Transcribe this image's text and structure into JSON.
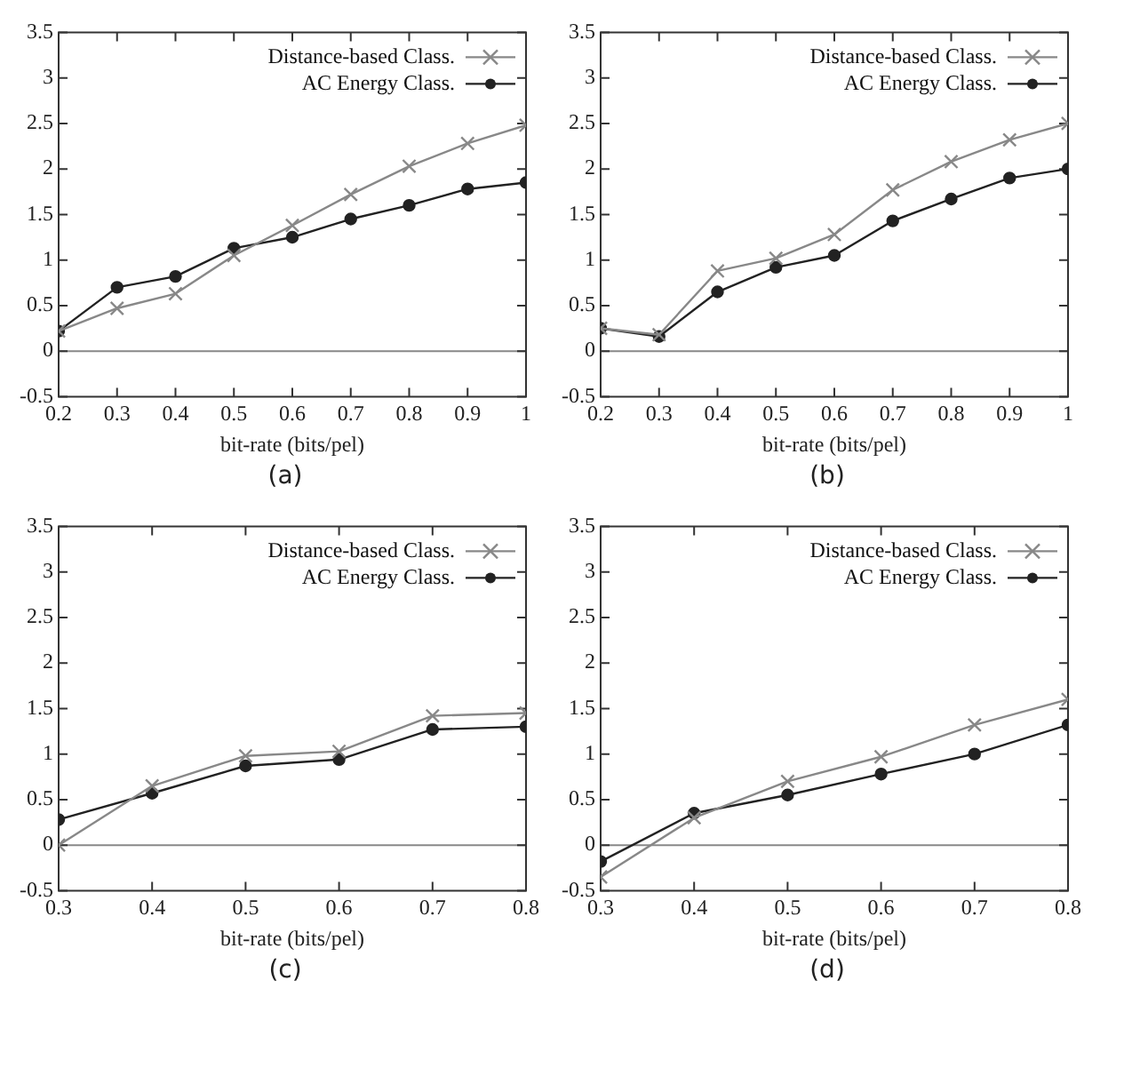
{
  "chart_data": [
    {
      "type": "line",
      "xlabel": "bit-rate (bits/pel)",
      "x": [
        0.2,
        0.3,
        0.4,
        0.5,
        0.6,
        0.7,
        0.8,
        0.9,
        1.0
      ],
      "xlim": [
        0.2,
        1.0
      ],
      "xticks": [
        0.2,
        0.3,
        0.4,
        0.5,
        0.6,
        0.7,
        0.8,
        0.9,
        1
      ],
      "ylim": [
        -0.5,
        3.5
      ],
      "yticks": [
        -0.5,
        0,
        0.5,
        1,
        1.5,
        2,
        2.5,
        3,
        3.5
      ],
      "legend": "top right",
      "annotations": [
        "(a)"
      ],
      "ref_lines": [
        {
          "axis": "y",
          "value": 0,
          "color": "#888888"
        }
      ],
      "series": [
        {
          "name": "Distance-based Class.",
          "color": "#888888",
          "marker": "cross",
          "values": [
            0.22,
            0.47,
            0.63,
            1.05,
            1.38,
            1.72,
            2.03,
            2.28,
            2.48
          ]
        },
        {
          "name": "AC Energy Class.",
          "color": "#222222",
          "marker": "circle",
          "values": [
            0.22,
            0.7,
            0.82,
            1.13,
            1.25,
            1.45,
            1.6,
            1.78,
            1.85
          ]
        }
      ]
    },
    {
      "type": "line",
      "xlabel": "bit-rate (bits/pel)",
      "x": [
        0.2,
        0.3,
        0.4,
        0.5,
        0.6,
        0.7,
        0.8,
        0.9,
        1.0
      ],
      "xlim": [
        0.2,
        1.0
      ],
      "xticks": [
        0.2,
        0.3,
        0.4,
        0.5,
        0.6,
        0.7,
        0.8,
        0.9,
        1
      ],
      "ylim": [
        -0.5,
        3.5
      ],
      "yticks": [
        -0.5,
        0,
        0.5,
        1,
        1.5,
        2,
        2.5,
        3,
        3.5
      ],
      "legend": "top right",
      "annotations": [
        "(b)"
      ],
      "ref_lines": [
        {
          "axis": "y",
          "value": 0,
          "color": "#888888"
        }
      ],
      "series": [
        {
          "name": "Distance-based Class.",
          "color": "#888888",
          "marker": "cross",
          "values": [
            0.25,
            0.18,
            0.88,
            1.02,
            1.28,
            1.77,
            2.08,
            2.32,
            2.5
          ]
        },
        {
          "name": "AC Energy Class.",
          "color": "#222222",
          "marker": "circle",
          "values": [
            0.25,
            0.16,
            0.65,
            0.92,
            1.05,
            1.43,
            1.67,
            1.9,
            2.0
          ]
        }
      ]
    },
    {
      "type": "line",
      "xlabel": "bit-rate (bits/pel)",
      "x": [
        0.3,
        0.4,
        0.5,
        0.6,
        0.7,
        0.8
      ],
      "xlim": [
        0.3,
        0.8
      ],
      "xticks": [
        0.3,
        0.4,
        0.5,
        0.6,
        0.7,
        0.8
      ],
      "ylim": [
        -0.5,
        3.5
      ],
      "yticks": [
        -0.5,
        0,
        0.5,
        1,
        1.5,
        2,
        2.5,
        3,
        3.5
      ],
      "legend": "top right",
      "annotations": [
        "(c)"
      ],
      "ref_lines": [
        {
          "axis": "y",
          "value": 0,
          "color": "#888888"
        }
      ],
      "series": [
        {
          "name": "Distance-based Class.",
          "color": "#888888",
          "marker": "cross",
          "values": [
            0,
            0.65,
            0.98,
            1.03,
            1.42,
            1.45
          ]
        },
        {
          "name": "AC Energy Class.",
          "color": "#222222",
          "marker": "circle",
          "values": [
            0.28,
            0.57,
            0.87,
            0.94,
            1.27,
            1.3
          ]
        }
      ]
    },
    {
      "type": "line",
      "xlabel": "bit-rate (bits/pel)",
      "x": [
        0.3,
        0.4,
        0.5,
        0.6,
        0.7,
        0.8
      ],
      "xlim": [
        0.3,
        0.8
      ],
      "xticks": [
        0.3,
        0.4,
        0.5,
        0.6,
        0.7,
        0.8
      ],
      "ylim": [
        -0.5,
        3.5
      ],
      "yticks": [
        -0.5,
        0,
        0.5,
        1,
        1.5,
        2,
        2.5,
        3,
        3.5
      ],
      "legend": "top right",
      "annotations": [
        "(d)"
      ],
      "ref_lines": [
        {
          "axis": "y",
          "value": 0,
          "color": "#888888"
        }
      ],
      "series": [
        {
          "name": "Distance-based Class.",
          "color": "#888888",
          "marker": "cross",
          "values": [
            -0.35,
            0.3,
            0.7,
            0.97,
            1.32,
            1.6
          ]
        },
        {
          "name": "AC Energy Class.",
          "color": "#222222",
          "marker": "circle",
          "values": [
            -0.18,
            0.35,
            0.55,
            0.78,
            1.0,
            1.32
          ]
        }
      ]
    }
  ]
}
